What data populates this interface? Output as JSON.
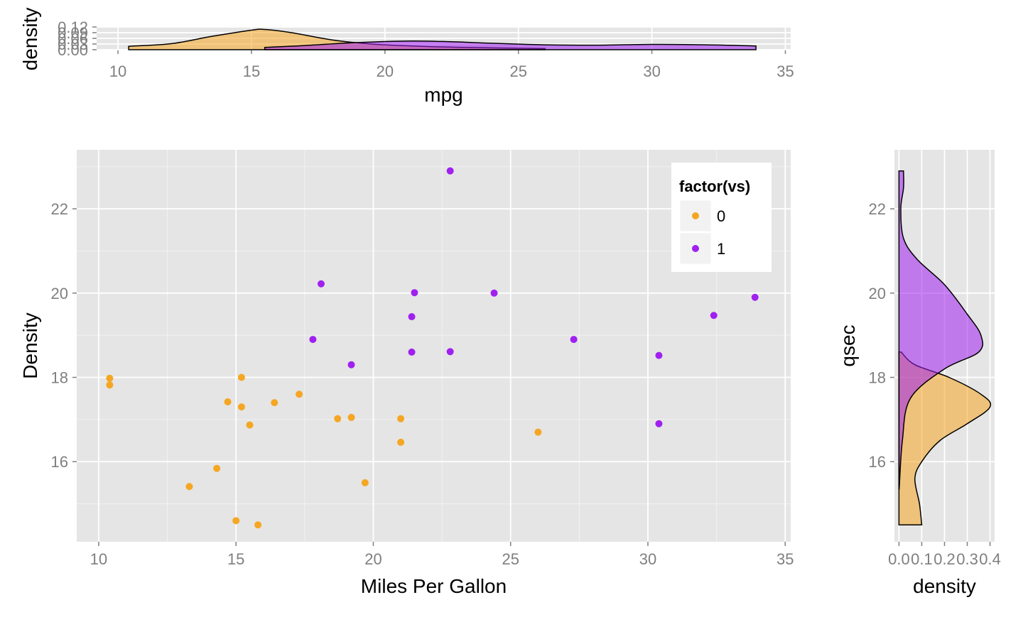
{
  "chart_data": [
    {
      "id": "top-density",
      "type": "area",
      "xlabel": "mpg",
      "ylabel": "density",
      "xlim": [
        9.2,
        35.2
      ],
      "ylim": [
        0,
        0.12
      ],
      "x_ticks": [
        10,
        15,
        20,
        25,
        30,
        35
      ],
      "y_ticks": [
        "0.00",
        "0.03",
        "0.06",
        "0.09",
        "0.12"
      ],
      "series": [
        {
          "group": "0",
          "color": "#f5a623",
          "points": [
            [
              10.4,
              0.018
            ],
            [
              12,
              0.032
            ],
            [
              13.5,
              0.07
            ],
            [
              15,
              0.103
            ],
            [
              15.5,
              0.107
            ],
            [
              16.5,
              0.09
            ],
            [
              18,
              0.052
            ],
            [
              19.5,
              0.03
            ],
            [
              21,
              0.02
            ],
            [
              23,
              0.012
            ],
            [
              26,
              0.006
            ]
          ]
        },
        {
          "group": "1",
          "color": "#a020f0",
          "points": [
            [
              15.5,
              0.012
            ],
            [
              17,
              0.022
            ],
            [
              19,
              0.038
            ],
            [
              21,
              0.046
            ],
            [
              22.5,
              0.042
            ],
            [
              24,
              0.034
            ],
            [
              26,
              0.026
            ],
            [
              28,
              0.024
            ],
            [
              30,
              0.028
            ],
            [
              32,
              0.026
            ],
            [
              33.9,
              0.02
            ]
          ]
        }
      ]
    },
    {
      "id": "scatter",
      "type": "scatter",
      "xlabel": "Miles Per Gallon",
      "ylabel": "Density",
      "xlim": [
        9.2,
        35.2
      ],
      "ylim": [
        14.1,
        23.4
      ],
      "x_ticks": [
        10,
        15,
        20,
        25,
        30,
        35
      ],
      "y_ticks": [
        16,
        18,
        20,
        22
      ],
      "legend": {
        "title": "factor(vs)",
        "position": "top-right",
        "entries": [
          {
            "label": "0",
            "color": "#f5a623"
          },
          {
            "label": "1",
            "color": "#a020f0"
          }
        ]
      },
      "series": [
        {
          "group": "0",
          "color": "#f5a623",
          "points": [
            [
              21,
              16.46
            ],
            [
              21,
              17.02
            ],
            [
              18.7,
              17.02
            ],
            [
              14.3,
              15.84
            ],
            [
              16.4,
              17.4
            ],
            [
              17.3,
              17.6
            ],
            [
              15.2,
              18
            ],
            [
              10.4,
              17.98
            ],
            [
              10.4,
              17.82
            ],
            [
              14.7,
              17.42
            ],
            [
              15.5,
              16.87
            ],
            [
              15.2,
              17.3
            ],
            [
              13.3,
              15.41
            ],
            [
              19.2,
              17.05
            ],
            [
              26,
              16.7
            ],
            [
              15.8,
              14.5
            ],
            [
              19.7,
              15.5
            ],
            [
              15,
              14.6
            ]
          ]
        },
        {
          "group": "1",
          "color": "#a020f0",
          "points": [
            [
              22.8,
              18.61
            ],
            [
              21.4,
              19.44
            ],
            [
              18.1,
              20.22
            ],
            [
              24.4,
              20
            ],
            [
              22.8,
              22.9
            ],
            [
              19.2,
              18.3
            ],
            [
              17.8,
              18.9
            ],
            [
              32.4,
              19.47
            ],
            [
              30.4,
              18.52
            ],
            [
              33.9,
              19.9
            ],
            [
              21.5,
              20.01
            ],
            [
              27.3,
              18.9
            ],
            [
              30.4,
              16.9
            ],
            [
              21.4,
              18.6
            ]
          ]
        }
      ]
    },
    {
      "id": "right-density",
      "type": "area",
      "xlabel": "density",
      "ylabel": "qsec",
      "xlim": [
        -0.02,
        0.42
      ],
      "ylim": [
        14.1,
        23.4
      ],
      "x_ticks": [
        "0.0",
        "0.1",
        "0.2",
        "0.3",
        "0.4"
      ],
      "y_ticks": [
        16,
        18,
        20,
        22
      ],
      "series": [
        {
          "group": "0",
          "color": "#f5a623",
          "points": [
            [
              14.5,
              0.1
            ],
            [
              15,
              0.09
            ],
            [
              15.6,
              0.07
            ],
            [
              16,
              0.1
            ],
            [
              16.5,
              0.18
            ],
            [
              16.9,
              0.3
            ],
            [
              17.3,
              0.4
            ],
            [
              17.6,
              0.36
            ],
            [
              18.0,
              0.22
            ],
            [
              18.3,
              0.07
            ],
            [
              18.6,
              0.01
            ]
          ]
        },
        {
          "group": "1",
          "color": "#a020f0",
          "points": [
            [
              15.35,
              0.001
            ],
            [
              16.5,
              0.015
            ],
            [
              17.5,
              0.05
            ],
            [
              18.2,
              0.2
            ],
            [
              18.6,
              0.35
            ],
            [
              19.0,
              0.36
            ],
            [
              19.5,
              0.3
            ],
            [
              20.2,
              0.2
            ],
            [
              20.8,
              0.08
            ],
            [
              21.3,
              0.02
            ],
            [
              22,
              0.008
            ],
            [
              22.5,
              0.02
            ],
            [
              22.9,
              0.02
            ]
          ]
        }
      ]
    }
  ]
}
